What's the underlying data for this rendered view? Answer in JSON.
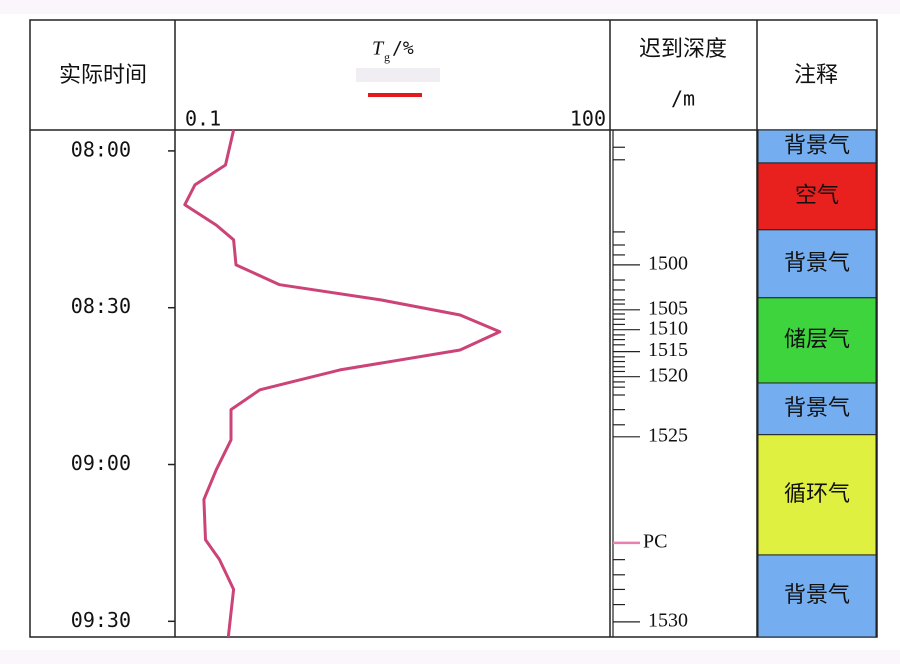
{
  "chart_data": {
    "type": "line",
    "headers": {
      "time": "实际时间",
      "t": "T",
      "sub": "g",
      "unit": "/%",
      "depth": "迟到深度",
      "depth_unit": "/m",
      "notes": "注释"
    },
    "xscale": "log",
    "xlim": [
      0.1,
      100
    ],
    "xticks": [
      0.1,
      100
    ],
    "ylim": [
      476,
      573
    ],
    "yticks": [
      {
        "value": 480,
        "label": "08:00"
      },
      {
        "value": 510,
        "label": "08:30"
      },
      {
        "value": 540,
        "label": "09:00"
      },
      {
        "value": 570,
        "label": "09:30"
      }
    ],
    "series": [
      {
        "color": "#cc4477",
        "legend_color": "#e31a1c",
        "y": [
          476.0,
          482.7,
          486.5,
          490.3,
          494.2,
          497.0,
          501.8,
          505.6,
          508.5,
          511.4,
          514.6,
          518.1,
          521.9,
          525.7,
          529.5,
          535.3,
          541.0,
          546.7,
          554.4,
          558.2,
          563.9,
          573.0
        ],
        "values": [
          0.25,
          0.22,
          0.135,
          0.115,
          0.19,
          0.25,
          0.26,
          0.52,
          2.6,
          9.2,
          17.3,
          9.2,
          1.36,
          0.38,
          0.24,
          0.24,
          0.19,
          0.156,
          0.16,
          0.2,
          0.25,
          0.23
        ]
      }
    ],
    "depth_labels": [
      {
        "depth": 1500,
        "time": 501.8
      },
      {
        "depth": 1505,
        "time": 510.4
      },
      {
        "depth": 1510,
        "time": 514.2
      },
      {
        "depth": 1515,
        "time": 518.4
      },
      {
        "depth": 1520,
        "time": 523.2
      },
      {
        "depth": 1525,
        "time": 534.7
      },
      {
        "depth": 1530,
        "time": 570.1
      }
    ],
    "depth_marker": {
      "label": "PC",
      "time": 555.0,
      "color": "#e87fb0"
    },
    "depth_minor_times": [
      479.3,
      481.7,
      495.5,
      498.0,
      499.9,
      504.7,
      506.6,
      508.5,
      509.3,
      511.2,
      512.2,
      513.2,
      515.2,
      516.1,
      517.1,
      519.4,
      520.3,
      521.3,
      522.2,
      524.2,
      525.2,
      526.7,
      529.5,
      532.4,
      558.2,
      561.1,
      563.9,
      566.8
    ],
    "notes": [
      {
        "label": "背景气",
        "color": "#74aef0",
        "start": 476.0,
        "end": 482.3
      },
      {
        "label": "空气",
        "color": "#e8201e",
        "start": 482.3,
        "end": 495.1
      },
      {
        "label": "背景气",
        "color": "#74aef0",
        "start": 495.1,
        "end": 508.1
      },
      {
        "label": "储层气",
        "color": "#3ed43e",
        "start": 508.1,
        "end": 524.4
      },
      {
        "label": "背景气",
        "color": "#74aef0",
        "start": 524.4,
        "end": 534.3
      },
      {
        "label": "循环气",
        "color": "#e0f040",
        "start": 534.3,
        "end": 557.3
      },
      {
        "label": "背景气",
        "color": "#74aef0",
        "start": 557.3,
        "end": 573.0
      }
    ]
  }
}
